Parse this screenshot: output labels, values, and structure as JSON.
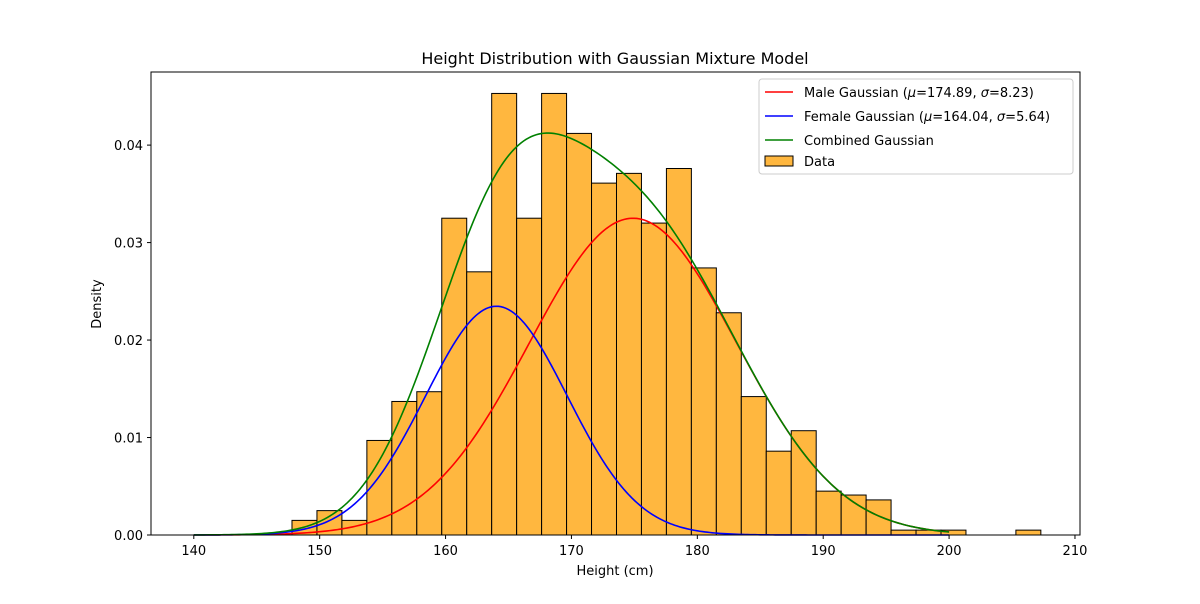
{
  "chart_data": {
    "type": "histogram",
    "title": "Height Distribution with Gaussian Mixture Model",
    "xlabel": "Height (cm)",
    "ylabel": "Density",
    "xlim": [
      136.6,
      210.4
    ],
    "ylim": [
      0,
      0.0475
    ],
    "xticks": [
      140,
      150,
      160,
      170,
      180,
      190,
      200,
      210
    ],
    "xtick_labels": [
      "140",
      "150",
      "160",
      "170",
      "180",
      "190",
      "200",
      "210"
    ],
    "yticks": [
      0,
      0.01,
      0.02,
      0.03,
      0.04
    ],
    "ytick_labels": [
      "0.00",
      "0.01",
      "0.02",
      "0.03",
      "0.04"
    ],
    "grid": false,
    "legend_position": "top-right",
    "histogram": {
      "name": "Data",
      "color": "#FFB73F",
      "edge_color": "#000000",
      "bin_start": 147.8,
      "bin_width": 1.983,
      "densities": [
        0.0015,
        0.0025,
        0.0015,
        0.0097,
        0.0137,
        0.0147,
        0.0325,
        0.027,
        0.0453,
        0.0325,
        0.0453,
        0.0412,
        0.0361,
        0.0371,
        0.032,
        0.0376,
        0.0274,
        0.0228,
        0.0142,
        0.0086,
        0.0107,
        0.0045,
        0.0041,
        0.0036,
        0.0005,
        0.0005,
        0.0005,
        0,
        0,
        0.0005
      ]
    },
    "series": [
      {
        "name": "Male Gaussian ($\\mu$=174.89, $\\sigma$=8.23)",
        "legend_prefix": "Male Gaussian (",
        "mu_label": "174.89",
        "sigma_label": "8.23",
        "color": "#FF0000",
        "weight": 0.6704,
        "mu": 174.89,
        "sigma": 8.23
      },
      {
        "name": "Female Gaussian ($\\mu$=164.04, $\\sigma$=5.64)",
        "legend_prefix": "Female Gaussian (",
        "mu_label": "164.04",
        "sigma_label": "5.64",
        "color": "#0000FF",
        "weight": 0.3318,
        "mu": 164.04,
        "sigma": 5.64
      },
      {
        "name": "Combined Gaussian",
        "color": "#008000",
        "combined": true
      }
    ],
    "curve_x_range": [
      140,
      200
    ]
  }
}
